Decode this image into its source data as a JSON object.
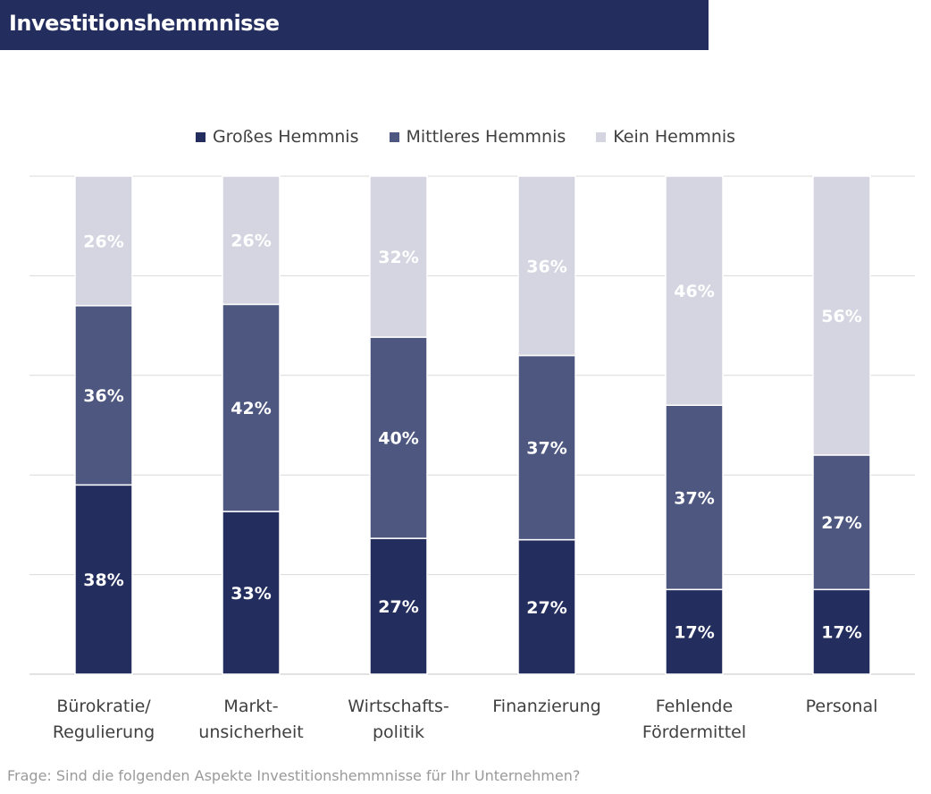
{
  "header": {
    "title": "Investitionshemmnisse"
  },
  "footnote": "Frage: Sind die folgenden Aspekte Investitionshemmnisse für Ihr Unternehmen?",
  "colors": {
    "gross": "#232e5f",
    "mittel": "#4e5780",
    "kein": "#d4d5e0",
    "grid": "#d9d9d9",
    "title_bg": "#232e5f"
  },
  "chart_data": {
    "type": "bar",
    "stacked": true,
    "ylim": [
      0,
      100
    ],
    "grid": true,
    "legend_position": "top",
    "categories": [
      [
        "Bürokratie/",
        "Regulierung"
      ],
      [
        "Markt-",
        "unsicherheit"
      ],
      [
        "Wirtschafts-",
        "politik"
      ],
      [
        "Finanzierung"
      ],
      [
        "Fehlende",
        "Fördermittel"
      ],
      [
        "Personal"
      ]
    ],
    "series": [
      {
        "name": "Großes Hemmnis",
        "color": "#232e5f",
        "values": [
          38,
          33,
          27,
          27,
          17,
          17
        ],
        "labels": [
          "38%",
          "33%",
          "27%",
          "27%",
          "17%",
          "17%"
        ]
      },
      {
        "name": "Mittleres Hemmnis",
        "color": "#4e5780",
        "values": [
          36,
          42,
          40,
          37,
          37,
          27
        ],
        "labels": [
          "36%",
          "42%",
          "40%",
          "37%",
          "37%",
          "27%"
        ]
      },
      {
        "name": "Kein Hemmnis",
        "color": "#d4d5e0",
        "values": [
          26,
          26,
          32,
          36,
          46,
          56
        ],
        "labels": [
          "26%",
          "26%",
          "32%",
          "36%",
          "46%",
          "56%"
        ]
      }
    ]
  }
}
